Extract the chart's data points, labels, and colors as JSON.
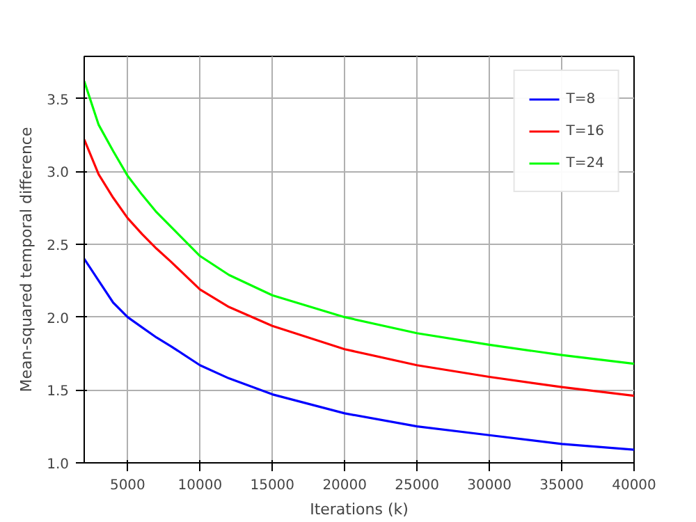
{
  "chart_data": {
    "type": "line",
    "xlabel": "Iterations (k)",
    "ylabel": "Mean-squared temporal difference",
    "x": [
      2000,
      3000,
      4000,
      5000,
      6000,
      7000,
      8000,
      10000,
      12000,
      15000,
      20000,
      25000,
      30000,
      35000,
      40000
    ],
    "series": [
      {
        "name": "T=8",
        "color": "#0000ff",
        "values": [
          2.4,
          2.25,
          2.1,
          2.0,
          1.93,
          1.86,
          1.8,
          1.67,
          1.58,
          1.47,
          1.34,
          1.25,
          1.19,
          1.13,
          1.09
        ]
      },
      {
        "name": "T=16",
        "color": "#ff0000",
        "values": [
          3.22,
          2.98,
          2.82,
          2.68,
          2.57,
          2.47,
          2.38,
          2.19,
          2.07,
          1.94,
          1.78,
          1.67,
          1.59,
          1.52,
          1.46
        ]
      },
      {
        "name": "T=24",
        "color": "#00ff00",
        "values": [
          3.62,
          3.32,
          3.14,
          2.97,
          2.84,
          2.72,
          2.62,
          2.42,
          2.29,
          2.15,
          2.0,
          1.89,
          1.81,
          1.74,
          1.68
        ]
      }
    ],
    "xlim": [
      2000,
      40000
    ],
    "ylim": [
      1.0,
      3.79
    ],
    "xticks": [
      5000,
      10000,
      15000,
      20000,
      25000,
      30000,
      35000,
      40000
    ],
    "yticks": [
      {
        "value": 1,
        "label": "1.0"
      },
      1.5,
      {
        "value": 2,
        "label": "2.0"
      },
      2.5,
      {
        "value": 3,
        "label": "3.0"
      },
      3.5
    ],
    "grid": true,
    "legend": "top right",
    "marker": "none",
    "line_style": "solid"
  }
}
